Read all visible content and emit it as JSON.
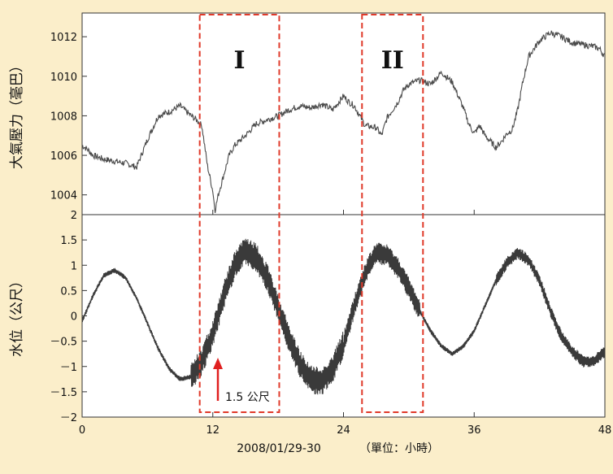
{
  "chart_data": [
    {
      "id": "pressure",
      "type": "line",
      "ylabel": "大氣壓力（毫巴）",
      "xlim": [
        0,
        48
      ],
      "ylim": [
        1003,
        1013.2
      ],
      "yticks": [
        1004,
        1006,
        1008,
        1010,
        1012
      ],
      "ytick_labels": [
        "1004",
        "1006",
        "1008",
        "1010",
        "1012"
      ],
      "line_color": "#4a4a4a",
      "x": [
        0,
        0.5,
        1,
        2,
        3,
        4,
        5,
        6,
        7,
        8,
        9,
        10,
        10.5,
        11,
        11.5,
        12,
        12.2,
        12.5,
        13,
        13.5,
        14,
        15,
        16,
        17,
        18,
        19,
        20,
        21,
        22,
        23,
        24,
        24.5,
        25,
        26,
        27,
        27.5,
        28,
        29,
        29.5,
        30,
        30.5,
        31,
        32,
        33,
        34,
        35,
        35.5,
        36,
        36.5,
        37,
        38,
        38.5,
        39,
        39.5,
        40,
        40.5,
        41,
        42,
        43,
        44,
        45,
        46,
        47,
        47.5,
        48
      ],
      "y": [
        1006.5,
        1006.3,
        1006.0,
        1005.8,
        1005.7,
        1005.6,
        1005.4,
        1006.8,
        1008.0,
        1008.2,
        1008.5,
        1008.0,
        1007.8,
        1007.5,
        1005.5,
        1004.2,
        1003.2,
        1004.0,
        1005.0,
        1006.0,
        1006.5,
        1007.0,
        1007.6,
        1007.8,
        1008.0,
        1008.3,
        1008.5,
        1008.4,
        1008.6,
        1008.3,
        1009.0,
        1008.7,
        1008.5,
        1007.5,
        1007.4,
        1007.0,
        1007.9,
        1008.7,
        1009.3,
        1009.6,
        1009.7,
        1009.8,
        1009.6,
        1010.2,
        1009.7,
        1008.4,
        1007.6,
        1007.1,
        1007.5,
        1007.0,
        1006.4,
        1006.7,
        1007.1,
        1007.3,
        1008.3,
        1009.8,
        1011.0,
        1011.8,
        1012.2,
        1012.0,
        1011.7,
        1011.6,
        1011.5,
        1011.4,
        1011.0
      ]
    },
    {
      "id": "water",
      "type": "line",
      "ylabel": "水位（公尺）",
      "xlim": [
        0,
        48
      ],
      "ylim": [
        -2,
        2
      ],
      "yticks": [
        -2,
        -1.5,
        -1,
        -0.5,
        0,
        0.5,
        1,
        1.5,
        2
      ],
      "ytick_labels": [
        "－2",
        "－1.5",
        "－1",
        "－0.5",
        "0",
        "0.5",
        "1",
        "1.5",
        "2"
      ],
      "xticks": [
        0,
        12,
        24,
        36,
        48
      ],
      "xtick_labels": [
        "0",
        "12",
        "24",
        "36",
        "48"
      ],
      "line_color": "#3a3a3a",
      "x": [
        0,
        1,
        2,
        3,
        4,
        5,
        6,
        7,
        8,
        9,
        10,
        11,
        12,
        13,
        14,
        15,
        16,
        17,
        18,
        19,
        20,
        21,
        22,
        23,
        24,
        25,
        26,
        27,
        28,
        29,
        30,
        31,
        32,
        33,
        34,
        35,
        36,
        37,
        38,
        39,
        40,
        41,
        42,
        43,
        44,
        45,
        46,
        47,
        48
      ],
      "y": [
        -0.1,
        0.4,
        0.8,
        0.9,
        0.75,
        0.35,
        -0.15,
        -0.65,
        -1.05,
        -1.25,
        -1.2,
        -0.9,
        -0.35,
        0.4,
        1.0,
        1.3,
        1.15,
        0.75,
        0.15,
        -0.45,
        -0.95,
        -1.25,
        -1.3,
        -1.05,
        -0.55,
        0.2,
        0.85,
        1.25,
        1.2,
        0.95,
        0.55,
        0.1,
        -0.3,
        -0.6,
        -0.75,
        -0.6,
        -0.3,
        0.2,
        0.7,
        1.05,
        1.25,
        1.1,
        0.7,
        0.1,
        -0.4,
        -0.7,
        -0.9,
        -0.9,
        -0.7
      ],
      "annotation": {
        "label": "1.5 公尺",
        "arrow_color": "#e02020"
      }
    }
  ],
  "regions": [
    {
      "label": "I",
      "x_start": 10.8,
      "x_end": 18.1
    },
    {
      "label": "II",
      "x_start": 25.7,
      "x_end": 31.3
    }
  ],
  "region_color": "#e03a2a",
  "x_caption": {
    "date": "2008/01/29-30",
    "unit": "（單位：小時）"
  }
}
